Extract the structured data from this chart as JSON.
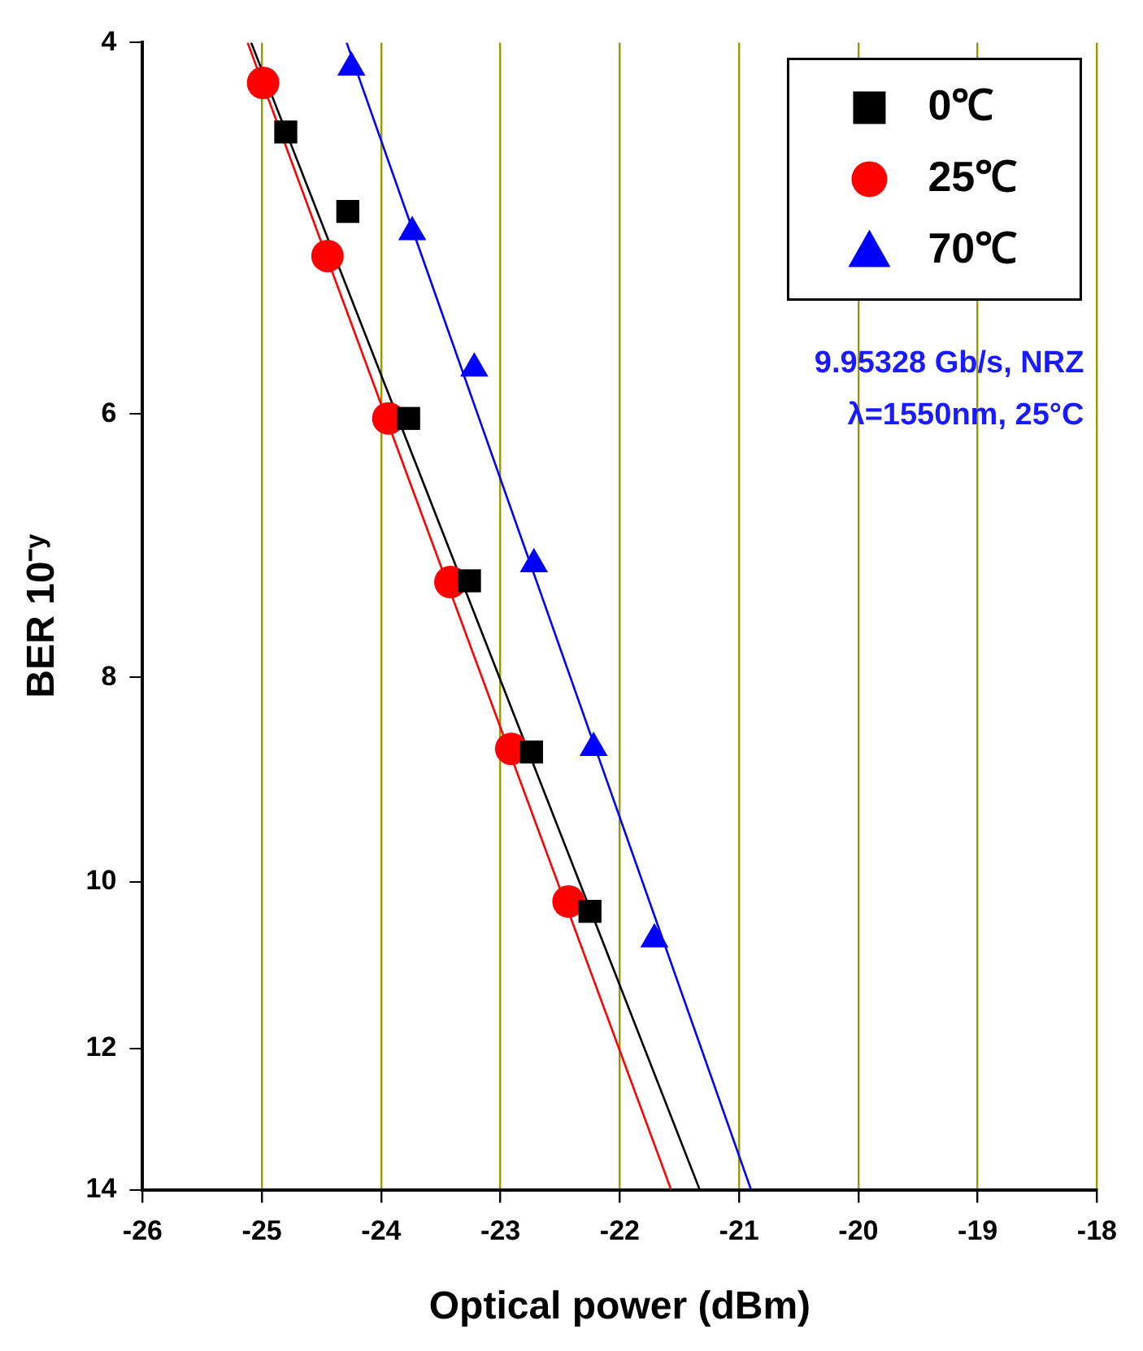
{
  "chart_data": {
    "type": "scatter",
    "xlabel": "Optical power (dBm)",
    "ylabel": "BER 10⁻ʸ",
    "xlim": [
      -26,
      -18
    ],
    "xticks": [
      -26,
      -25,
      -24,
      -23,
      -22,
      -21,
      -20,
      -19,
      -18
    ],
    "ylim": [
      14,
      4
    ],
    "yticks": [
      4,
      6,
      8,
      10,
      12,
      14
    ],
    "log": "y",
    "grid": "x",
    "legend": "top right",
    "annotations": [
      "9.95328 Gb/s, NRZ",
      "λ=1550nm, 25°C"
    ],
    "series": [
      {
        "name": "0℃",
        "color": "#000000",
        "marker": "square",
        "x": [
          -24.8,
          -24.28,
          -23.77,
          -23.26,
          -22.74,
          -22.25
        ],
        "values": [
          4.41,
          4.81,
          6.03,
          7.2,
          8.68,
          10.33
        ]
      },
      {
        "name": "25℃",
        "color": "#ff0000",
        "marker": "circle",
        "x": [
          -24.99,
          -24.45,
          -23.94,
          -23.42,
          -22.91,
          -22.43
        ],
        "values": [
          4.18,
          5.05,
          6.03,
          7.21,
          8.65,
          10.22
        ]
      },
      {
        "name": "70℃",
        "color": "#0000ff",
        "marker": "triangle",
        "x": [
          -24.25,
          -23.74,
          -23.22,
          -22.72,
          -22.22,
          -21.71
        ],
        "values": [
          4.11,
          4.92,
          5.71,
          7.07,
          8.64,
          10.65
        ]
      },
      {
        "type": "line",
        "color": "#000000",
        "marker": "none",
        "x": [
          -25.09,
          -21.33
        ],
        "values": [
          4,
          14
        ]
      },
      {
        "type": "line",
        "color": "#ff0000",
        "marker": "none",
        "x": [
          -25.12,
          -21.57
        ],
        "values": [
          4,
          14
        ]
      },
      {
        "type": "line",
        "color": "#0000ff",
        "marker": "none",
        "x": [
          -24.29,
          -20.9
        ],
        "values": [
          4,
          14
        ]
      }
    ]
  }
}
